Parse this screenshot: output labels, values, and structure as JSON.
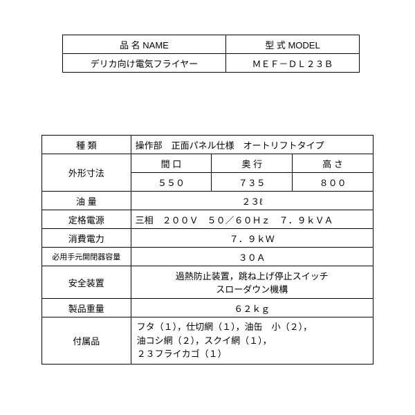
{
  "table1": {
    "header_name": "品 名 NAME",
    "header_model": "型 式 MODEL",
    "value_name": "デリカ向け電気フライヤー",
    "value_model": "ＭＥＦ－ＤＬ２３Ｂ"
  },
  "table2": {
    "type_label": "種 類",
    "type_value": "操作部　正面パネル仕様　オートリフトタイプ",
    "dim_label": "外形寸法",
    "dim_w_label": "間 口",
    "dim_d_label": "奥 行",
    "dim_h_label": "高 さ",
    "dim_w": "５５０",
    "dim_d": "７３５",
    "dim_h": "８００",
    "oil_label": "油 量",
    "oil_value": "２３ℓ",
    "power_label": "定格電源",
    "power_value": "三相　２００Ｖ　５０／６０Ｈｚ　７．９ｋＶＡ",
    "consumption_label": "消費電力",
    "consumption_value": "７．９ｋＷ",
    "breaker_label": "必用手元開閉器容量",
    "breaker_value": "３０Ａ",
    "safety_label": "安全装置",
    "safety_line1": "過熱防止装置，跳ね上げ停止スイッチ",
    "safety_line2": "スローダウン機構",
    "weight_label": "製品重量",
    "weight_value": "６２ｋｇ",
    "acc_label": "付属品",
    "acc_line1": "フタ（１），仕切網（１），油缶　小（２），",
    "acc_line2": "油コシ網（２），スクイ網（１），",
    "acc_line3": "２３フライカゴ（１）"
  }
}
